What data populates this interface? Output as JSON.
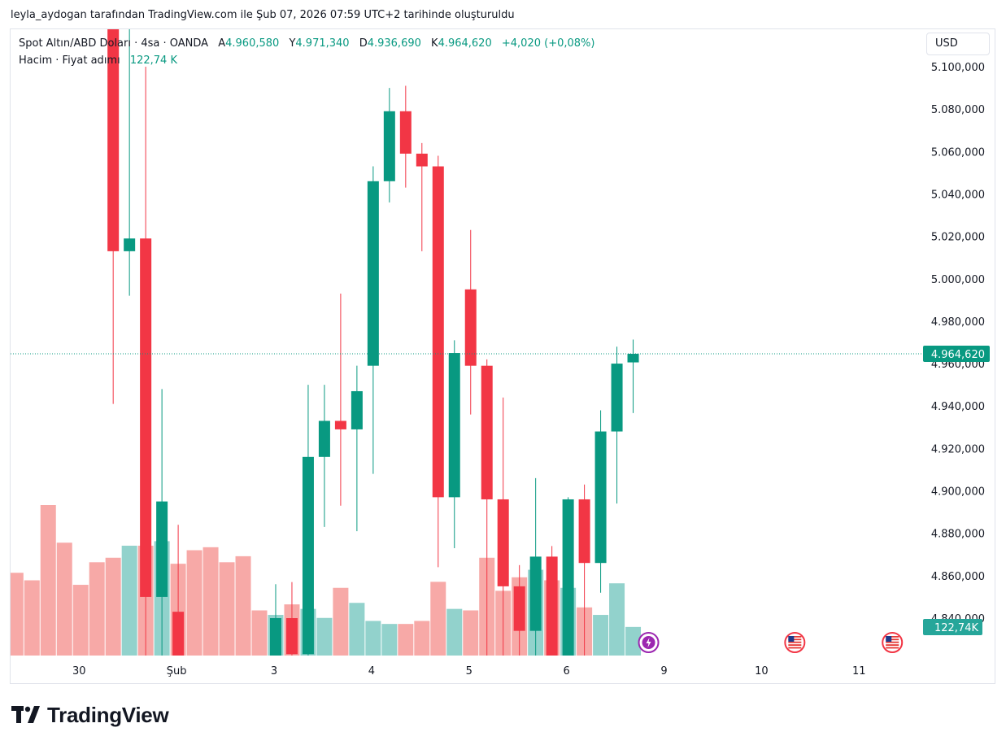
{
  "caption": "leyla_aydogan tarafından TradingView.com ile Şub 07, 2026 07:59 UTC+2 tarihinde oluşturuldu",
  "legend": {
    "symbol": "Spot Altın/ABD Doları · 4sa · OANDA",
    "open_label": "A",
    "open_value": "4.960,580",
    "high_label": "Y",
    "high_value": "4.971,340",
    "low_label": "D",
    "low_value": "4.936,690",
    "close_label": "K",
    "close_value": "4.964,620",
    "change": "+4,020 (+0,08%)",
    "volume_label": "Hacim · Fiyat adımı",
    "volume_value": "122,74 K"
  },
  "currency": "USD",
  "brand": "TradingView",
  "colors": {
    "up": "#089981",
    "down": "#f23645",
    "up_volume": "#92d2cc",
    "down_volume": "#f7a9a7"
  },
  "chart_data": {
    "type": "candlestick",
    "interval": "4h",
    "price_axis_labels": [
      "5.100,000",
      "5.080,000",
      "5.060,000",
      "5.040,000",
      "5.020,000",
      "5.000,000",
      "4.980,000",
      "4.960,000",
      "4.940,000",
      "4.920,000",
      "4.900,000",
      "4.880,000",
      "4.860,000",
      "4.840,000"
    ],
    "price_ticks": [
      5100,
      5080,
      5060,
      5040,
      5020,
      5000,
      4980,
      4960,
      4940,
      4920,
      4900,
      4880,
      4860,
      4840
    ],
    "time_axis": [
      {
        "label": "30",
        "index": 4
      },
      {
        "label": "Şub",
        "index": 10
      },
      {
        "label": "3",
        "index": 16
      },
      {
        "label": "4",
        "index": 22
      },
      {
        "label": "5",
        "index": 28
      },
      {
        "label": "6",
        "index": 34
      },
      {
        "label": "9",
        "index": 40
      },
      {
        "label": "10",
        "index": 46
      },
      {
        "label": "11",
        "index": 52
      }
    ],
    "last_price": 4964.62,
    "last_price_label": "4.964,620",
    "last_volume_label": "122,74K",
    "candles": [
      {
        "o": null,
        "h": null,
        "l": null,
        "c": null,
        "v": 55
      },
      {
        "o": null,
        "h": null,
        "l": null,
        "c": null,
        "v": 50
      },
      {
        "o": null,
        "h": null,
        "l": null,
        "c": null,
        "v": 100
      },
      {
        "o": null,
        "h": null,
        "l": null,
        "c": null,
        "v": 75
      },
      {
        "o": null,
        "h": null,
        "l": null,
        "c": null,
        "v": 47
      },
      {
        "o": null,
        "h": null,
        "l": null,
        "c": null,
        "v": 62
      },
      {
        "o": 5130,
        "h": 5140,
        "l": 4941,
        "c": 5013,
        "v": 65
      },
      {
        "o": 5013,
        "h": 5140,
        "l": 4992,
        "c": 5019,
        "v": 73
      },
      {
        "o": 5019,
        "h": 5100,
        "l": 4820,
        "c": 4850,
        "v": 73
      },
      {
        "o": 4850,
        "h": 4948,
        "l": 4820,
        "c": 4895,
        "v": 76
      },
      {
        "o": 4843,
        "h": 4884,
        "l": 4820,
        "c": 4821,
        "v": 61
      },
      {
        "o": null,
        "h": null,
        "l": null,
        "c": null,
        "v": 70
      },
      {
        "o": null,
        "h": null,
        "l": null,
        "c": null,
        "v": 72
      },
      {
        "o": null,
        "h": null,
        "l": null,
        "c": null,
        "v": 62
      },
      {
        "o": null,
        "h": null,
        "l": null,
        "c": null,
        "v": 66
      },
      {
        "o": null,
        "h": null,
        "l": null,
        "c": null,
        "v": 30
      },
      {
        "o": 4822,
        "h": 4856,
        "l": 4820,
        "c": 4840,
        "v": 27
      },
      {
        "o": 4840,
        "h": 4857,
        "l": 4820,
        "c": 4823,
        "v": 34
      },
      {
        "o": 4823,
        "h": 4950,
        "l": 4820,
        "c": 4916,
        "v": 31
      },
      {
        "o": 4916,
        "h": 4950,
        "l": 4883,
        "c": 4933,
        "v": 25
      },
      {
        "o": 4933,
        "h": 4993,
        "l": 4893,
        "c": 4929,
        "v": 45
      },
      {
        "o": 4929,
        "h": 4959,
        "l": 4881,
        "c": 4947,
        "v": 35
      },
      {
        "o": 4959,
        "h": 5053,
        "l": 4908,
        "c": 5046,
        "v": 23
      },
      {
        "o": 5046,
        "h": 5090,
        "l": 5036,
        "c": 5079,
        "v": 21
      },
      {
        "o": 5079,
        "h": 5091,
        "l": 5043,
        "c": 5059,
        "v": 21
      },
      {
        "o": 5059,
        "h": 5064,
        "l": 5013,
        "c": 5053,
        "v": 23
      },
      {
        "o": 5053,
        "h": 5058,
        "l": 4864,
        "c": 4897,
        "v": 49
      },
      {
        "o": 4897,
        "h": 4971,
        "l": 4873,
        "c": 4965,
        "v": 31
      },
      {
        "o": 4995,
        "h": 5023,
        "l": 4936,
        "c": 4959,
        "v": 30
      },
      {
        "o": 4959,
        "h": 4962,
        "l": 4820,
        "c": 4896,
        "v": 65
      },
      {
        "o": 4896,
        "h": 4944,
        "l": 4820,
        "c": 4855,
        "v": 43
      },
      {
        "o": 4855,
        "h": 4865,
        "l": 4820,
        "c": 4834,
        "v": 52
      },
      {
        "o": 4834,
        "h": 4906,
        "l": 4820,
        "c": 4869,
        "v": 57
      },
      {
        "o": 4869,
        "h": 4874,
        "l": 4820,
        "c": 4821,
        "v": 50
      },
      {
        "o": 4821,
        "h": 4897,
        "l": 4820,
        "c": 4896,
        "v": 45
      },
      {
        "o": 4896,
        "h": 4903,
        "l": 4820,
        "c": 4866,
        "v": 32
      },
      {
        "o": 4866,
        "h": 4938,
        "l": 4852,
        "c": 4928,
        "v": 27
      },
      {
        "o": 4928,
        "h": 4968,
        "l": 4894,
        "c": 4960,
        "v": 48
      },
      {
        "o": 4960.58,
        "h": 4971.34,
        "l": 4936.69,
        "c": 4964.62,
        "v": 19
      }
    ]
  },
  "markers": [
    {
      "name": "splits-icon",
      "index": 39,
      "color": "#9c27b0"
    },
    {
      "name": "us-flag-event-icon",
      "index": 48,
      "color": "#f23645"
    },
    {
      "name": "us-flag-event-icon",
      "index": 54,
      "color": "#f23645"
    }
  ]
}
